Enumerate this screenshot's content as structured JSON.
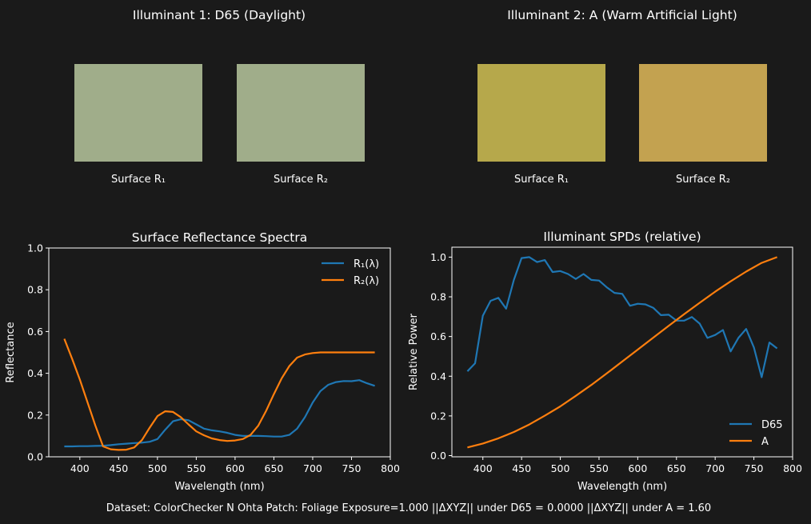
{
  "panels": [
    {
      "title": "Illuminant 1: D65 (Daylight)",
      "patches": [
        {
          "label": "Surface R₁",
          "color": "#a0ad8a"
        },
        {
          "label": "Surface R₂",
          "color": "#a0ad8a"
        }
      ]
    },
    {
      "title": "Illuminant 2: A (Warm Artificial Light)",
      "patches": [
        {
          "label": "Surface R₁",
          "color": "#b6a84b"
        },
        {
          "label": "Surface R₂",
          "color": "#c3a250"
        }
      ]
    }
  ],
  "footer": "Dataset: ColorChecker N Ohta   Patch: Foliage   Exposure=1.000   ||ΔXYZ|| under D65 = 0.0000   ||ΔXYZ|| under A = 1.60",
  "chart_data": [
    {
      "type": "line",
      "title": "Surface Reflectance Spectra",
      "xlabel": "Wavelength (nm)",
      "ylabel": "Reflectance",
      "xlim": [
        360,
        800
      ],
      "ylim": [
        0,
        1.0
      ],
      "xticks": [
        "400",
        "450",
        "500",
        "550",
        "600",
        "650",
        "700",
        "750",
        "800"
      ],
      "yticks": [
        "0.0",
        "0.2",
        "0.4",
        "0.6",
        "0.8",
        "1.0"
      ],
      "legend": "top-right",
      "grid": false,
      "x": [
        380,
        390,
        400,
        410,
        420,
        430,
        440,
        450,
        460,
        470,
        480,
        490,
        500,
        510,
        520,
        530,
        540,
        550,
        560,
        570,
        580,
        590,
        600,
        610,
        620,
        630,
        640,
        650,
        660,
        670,
        680,
        690,
        700,
        710,
        720,
        730,
        740,
        750,
        760,
        770,
        780
      ],
      "series": [
        {
          "name": "R₁(λ)",
          "color": "#1f77b4",
          "values": [
            0.05,
            0.05,
            0.051,
            0.051,
            0.052,
            0.053,
            0.056,
            0.06,
            0.063,
            0.066,
            0.068,
            0.072,
            0.085,
            0.13,
            0.17,
            0.18,
            0.175,
            0.155,
            0.135,
            0.127,
            0.122,
            0.115,
            0.105,
            0.1,
            0.1,
            0.1,
            0.099,
            0.097,
            0.097,
            0.105,
            0.135,
            0.19,
            0.26,
            0.315,
            0.345,
            0.358,
            0.363,
            0.362,
            0.367,
            0.352,
            0.34
          ]
        },
        {
          "name": "R₂(λ)",
          "color": "#ff7f0e",
          "values": [
            0.565,
            0.47,
            0.37,
            0.26,
            0.15,
            0.05,
            0.036,
            0.033,
            0.034,
            0.045,
            0.08,
            0.14,
            0.195,
            0.218,
            0.215,
            0.19,
            0.155,
            0.122,
            0.103,
            0.088,
            0.08,
            0.076,
            0.078,
            0.085,
            0.105,
            0.15,
            0.22,
            0.3,
            0.375,
            0.435,
            0.475,
            0.49,
            0.497,
            0.5,
            0.5,
            0.5,
            0.5,
            0.5,
            0.5,
            0.5,
            0.5
          ]
        }
      ]
    },
    {
      "type": "line",
      "title": "Illuminant SPDs (relative)",
      "xlabel": "Wavelength (nm)",
      "ylabel": "Relative Power",
      "xlim": [
        360,
        800
      ],
      "ylim": [
        -0.006,
        1.05
      ],
      "xticks": [
        "400",
        "450",
        "500",
        "550",
        "600",
        "650",
        "700",
        "750",
        "800"
      ],
      "yticks": [
        "0.0",
        "0.2",
        "0.4",
        "0.6",
        "0.8",
        "1.0"
      ],
      "legend": "bottom-right",
      "grid": false,
      "series": [
        {
          "name": "D65",
          "color": "#1f77b4",
          "x": [
            380,
            390,
            400,
            410,
            420,
            430,
            440,
            450,
            460,
            470,
            480,
            490,
            500,
            510,
            520,
            530,
            540,
            550,
            560,
            570,
            580,
            590,
            600,
            610,
            620,
            630,
            640,
            650,
            660,
            670,
            680,
            690,
            700,
            710,
            720,
            730,
            740,
            750,
            760,
            770,
            780
          ],
          "values": [
            0.425,
            0.465,
            0.705,
            0.78,
            0.795,
            0.74,
            0.885,
            0.995,
            1.0,
            0.975,
            0.985,
            0.925,
            0.93,
            0.915,
            0.89,
            0.915,
            0.885,
            0.882,
            0.848,
            0.82,
            0.815,
            0.755,
            0.765,
            0.762,
            0.745,
            0.708,
            0.71,
            0.68,
            0.68,
            0.698,
            0.665,
            0.593,
            0.608,
            0.633,
            0.525,
            0.593,
            0.638,
            0.545,
            0.395,
            0.57,
            0.54
          ]
        },
        {
          "name": "A",
          "color": "#ff7f0e",
          "x": [
            380,
            400,
            420,
            440,
            460,
            480,
            500,
            520,
            540,
            560,
            580,
            600,
            620,
            640,
            660,
            680,
            700,
            720,
            740,
            760,
            780
          ],
          "values": [
            0.041,
            0.061,
            0.087,
            0.119,
            0.157,
            0.201,
            0.248,
            0.301,
            0.356,
            0.414,
            0.474,
            0.534,
            0.594,
            0.654,
            0.713,
            0.77,
            0.826,
            0.878,
            0.927,
            0.971,
            1.0
          ]
        }
      ]
    }
  ]
}
